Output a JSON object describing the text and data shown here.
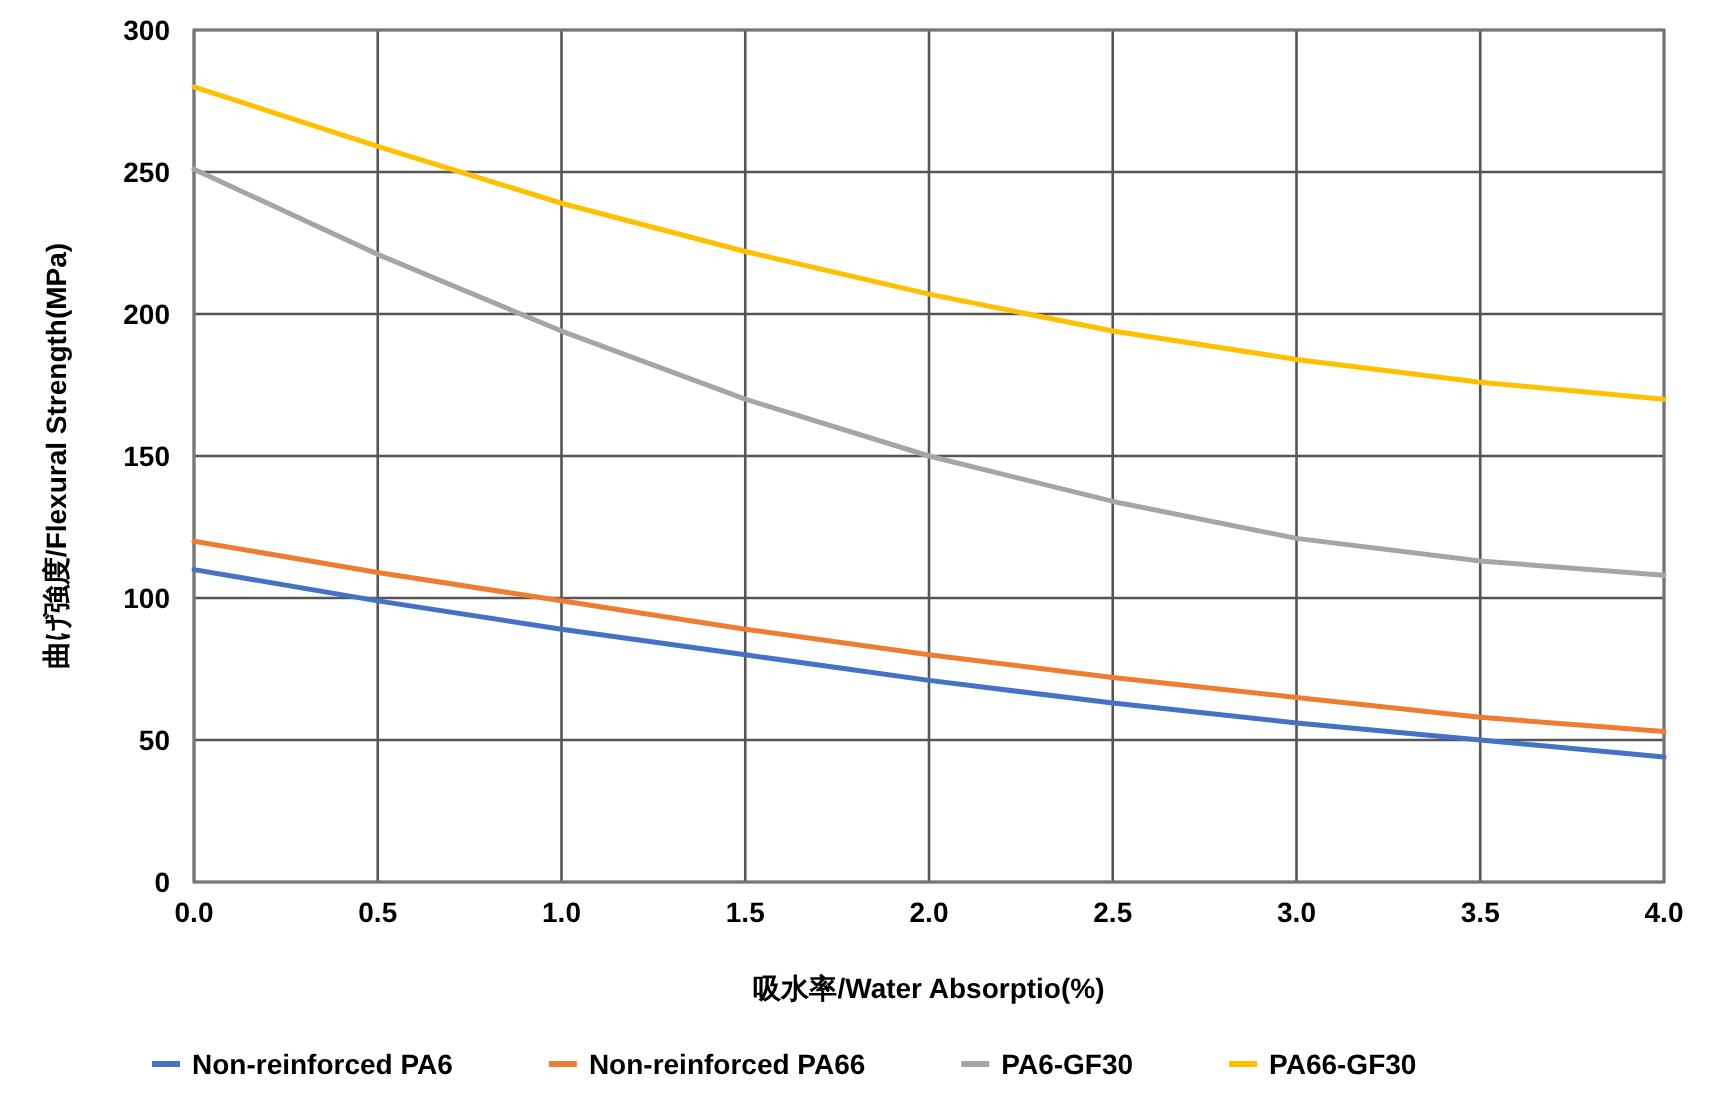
{
  "chart_data": {
    "type": "line",
    "xlabel": "吸水率/Water Absorptio(%)",
    "ylabel": "曲げ強度/Flexural Strength(MPa)",
    "x": [
      0,
      0.5,
      1.0,
      1.5,
      2.0,
      2.5,
      3.0,
      3.5,
      4.0
    ],
    "series": [
      {
        "name": "Non-reinforced PA6",
        "color": "#4472c4",
        "values": [
          110,
          99,
          89,
          80,
          71,
          63,
          56,
          50,
          44
        ]
      },
      {
        "name": "Non-reinforced PA66",
        "color": "#ed7d31",
        "values": [
          120,
          109,
          99,
          89,
          80,
          72,
          65,
          58,
          53
        ]
      },
      {
        "name": "PA6-GF30",
        "color": "#a5a5a5",
        "values": [
          251,
          221,
          194,
          170,
          150,
          134,
          121,
          113,
          108
        ]
      },
      {
        "name": "PA66-GF30",
        "color": "#ffc000",
        "values": [
          280,
          259,
          239,
          222,
          207,
          194,
          184,
          176,
          170
        ]
      }
    ],
    "xlim": [
      0,
      4.0
    ],
    "ylim": [
      0,
      300
    ],
    "xticks": [
      {
        "value": 0,
        "label": "0.0"
      },
      0.5,
      {
        "value": 1,
        "label": "1.0"
      },
      1.5,
      {
        "value": 2,
        "label": "2.0"
      },
      2.5,
      {
        "value": 3,
        "label": "3.0"
      },
      3.5,
      {
        "value": 4,
        "label": "4.0"
      }
    ],
    "yticks": [
      0,
      50,
      100,
      150,
      200,
      250,
      300
    ],
    "grid": true,
    "legend": "bottom",
    "marker": "none",
    "line_style": "solid"
  }
}
